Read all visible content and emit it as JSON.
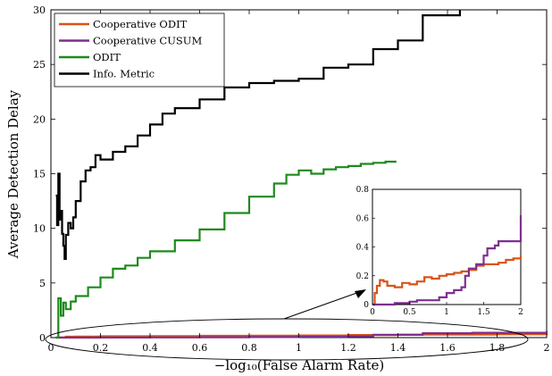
{
  "chart_data": {
    "type": "line",
    "xlabel": "−log₁₀(False Alarm Rate)",
    "ylabel": "Average Detection Delay",
    "xlim": [
      0,
      2
    ],
    "ylim": [
      0,
      30
    ],
    "xticks": [
      0,
      0.2,
      0.4,
      0.6,
      0.8,
      1,
      1.2,
      1.4,
      1.6,
      1.8,
      2
    ],
    "xtick_labels": [
      "0",
      "0.2",
      "0.4",
      "0.6",
      "0.8",
      "1",
      "1.2",
      "1.4",
      "1.6",
      "1.8",
      "2"
    ],
    "yticks": [
      0,
      5,
      10,
      15,
      20,
      25,
      30
    ],
    "ytick_labels": [
      "0",
      "5",
      "10",
      "15",
      "20",
      "25",
      "30"
    ],
    "grid": false,
    "legend_position": "top-left",
    "series": [
      {
        "name": "Cooperative ODIT",
        "color": "#D95319",
        "step": true,
        "points": [
          [
            0.02,
            0.02
          ],
          [
            0.06,
            0.08
          ],
          [
            0.1,
            0.1
          ],
          [
            0.2,
            0.12
          ],
          [
            0.4,
            0.14
          ],
          [
            0.6,
            0.16
          ],
          [
            0.8,
            0.18
          ],
          [
            1.0,
            0.2
          ],
          [
            1.2,
            0.24
          ],
          [
            1.4,
            0.27
          ],
          [
            1.6,
            0.28
          ],
          [
            1.8,
            0.3
          ],
          [
            2.0,
            0.34
          ]
        ]
      },
      {
        "name": "Cooperative CUSUM",
        "color": "#7E2F8E",
        "step": true,
        "points": [
          [
            0.02,
            0.0
          ],
          [
            0.2,
            0.01
          ],
          [
            0.4,
            0.02
          ],
          [
            0.6,
            0.03
          ],
          [
            0.8,
            0.05
          ],
          [
            1.0,
            0.08
          ],
          [
            1.2,
            0.12
          ],
          [
            1.3,
            0.25
          ],
          [
            1.5,
            0.4
          ],
          [
            1.7,
            0.44
          ],
          [
            2.0,
            0.62
          ]
        ]
      },
      {
        "name": "ODIT",
        "color": "#1E8A1E",
        "step": true,
        "points": [
          [
            0.02,
            0.0
          ],
          [
            0.03,
            3.6
          ],
          [
            0.04,
            2.0
          ],
          [
            0.05,
            3.2
          ],
          [
            0.06,
            2.6
          ],
          [
            0.08,
            3.3
          ],
          [
            0.1,
            3.8
          ],
          [
            0.15,
            4.6
          ],
          [
            0.2,
            5.5
          ],
          [
            0.25,
            6.3
          ],
          [
            0.3,
            6.6
          ],
          [
            0.35,
            7.3
          ],
          [
            0.4,
            7.9
          ],
          [
            0.5,
            8.9
          ],
          [
            0.6,
            9.9
          ],
          [
            0.7,
            11.4
          ],
          [
            0.8,
            12.9
          ],
          [
            0.9,
            14.1
          ],
          [
            0.95,
            14.9
          ],
          [
            1.0,
            15.3
          ],
          [
            1.05,
            15.0
          ],
          [
            1.1,
            15.4
          ],
          [
            1.15,
            15.6
          ],
          [
            1.2,
            15.7
          ],
          [
            1.25,
            15.9
          ],
          [
            1.3,
            16.0
          ],
          [
            1.35,
            16.1
          ],
          [
            1.39,
            16.0
          ]
        ]
      },
      {
        "name": "Info. Metric",
        "color": "#000000",
        "step": true,
        "points": [
          [
            0.02,
            13.0
          ],
          [
            0.025,
            10.3
          ],
          [
            0.03,
            15.0
          ],
          [
            0.035,
            10.8
          ],
          [
            0.04,
            11.6
          ],
          [
            0.045,
            9.5
          ],
          [
            0.05,
            8.4
          ],
          [
            0.055,
            7.2
          ],
          [
            0.06,
            9.4
          ],
          [
            0.07,
            10.5
          ],
          [
            0.08,
            10.0
          ],
          [
            0.09,
            11.0
          ],
          [
            0.1,
            12.5
          ],
          [
            0.12,
            14.3
          ],
          [
            0.14,
            15.3
          ],
          [
            0.16,
            15.6
          ],
          [
            0.18,
            16.7
          ],
          [
            0.2,
            16.3
          ],
          [
            0.25,
            17.0
          ],
          [
            0.3,
            17.5
          ],
          [
            0.35,
            18.5
          ],
          [
            0.4,
            19.5
          ],
          [
            0.45,
            20.5
          ],
          [
            0.5,
            21.0
          ],
          [
            0.6,
            21.8
          ],
          [
            0.7,
            22.9
          ],
          [
            0.8,
            23.3
          ],
          [
            0.9,
            23.5
          ],
          [
            1.0,
            23.7
          ],
          [
            1.1,
            24.7
          ],
          [
            1.2,
            25.0
          ],
          [
            1.3,
            26.4
          ],
          [
            1.4,
            27.2
          ],
          [
            1.5,
            29.5
          ],
          [
            1.65,
            30.0
          ]
        ]
      }
    ],
    "annotation": {
      "type": "ellipse-with-arrow",
      "target": "inset"
    },
    "inset": {
      "xlim": [
        0,
        2
      ],
      "ylim": [
        0,
        0.8
      ],
      "xticks": [
        0,
        0.5,
        1,
        1.5,
        2
      ],
      "xtick_labels": [
        "0",
        "0.5",
        "1",
        "1.5",
        "2"
      ],
      "yticks": [
        0,
        0.2,
        0.4,
        0.6,
        0.8
      ],
      "ytick_labels": [
        "0",
        "0.2",
        "0.4",
        "0.6",
        "0.8"
      ],
      "series": [
        {
          "name": "Cooperative ODIT",
          "color": "#D95319",
          "step": true,
          "points": [
            [
              0.0,
              0.0
            ],
            [
              0.03,
              0.08
            ],
            [
              0.06,
              0.13
            ],
            [
              0.1,
              0.17
            ],
            [
              0.15,
              0.16
            ],
            [
              0.2,
              0.13
            ],
            [
              0.3,
              0.12
            ],
            [
              0.4,
              0.15
            ],
            [
              0.5,
              0.14
            ],
            [
              0.6,
              0.16
            ],
            [
              0.7,
              0.19
            ],
            [
              0.8,
              0.18
            ],
            [
              0.9,
              0.2
            ],
            [
              1.0,
              0.21
            ],
            [
              1.1,
              0.22
            ],
            [
              1.2,
              0.23
            ],
            [
              1.3,
              0.24
            ],
            [
              1.4,
              0.27
            ],
            [
              1.5,
              0.28
            ],
            [
              1.7,
              0.29
            ],
            [
              1.8,
              0.31
            ],
            [
              1.9,
              0.32
            ],
            [
              2.0,
              0.34
            ]
          ]
        },
        {
          "name": "Cooperative CUSUM",
          "color": "#7E2F8E",
          "step": true,
          "points": [
            [
              0.0,
              0.0
            ],
            [
              0.1,
              0.0
            ],
            [
              0.3,
              0.01
            ],
            [
              0.5,
              0.02
            ],
            [
              0.6,
              0.03
            ],
            [
              0.75,
              0.03
            ],
            [
              0.9,
              0.05
            ],
            [
              1.0,
              0.08
            ],
            [
              1.1,
              0.1
            ],
            [
              1.2,
              0.12
            ],
            [
              1.25,
              0.2
            ],
            [
              1.3,
              0.25
            ],
            [
              1.4,
              0.28
            ],
            [
              1.5,
              0.34
            ],
            [
              1.55,
              0.39
            ],
            [
              1.65,
              0.41
            ],
            [
              1.7,
              0.44
            ],
            [
              1.99,
              0.44
            ],
            [
              2.0,
              0.62
            ]
          ]
        }
      ]
    }
  }
}
